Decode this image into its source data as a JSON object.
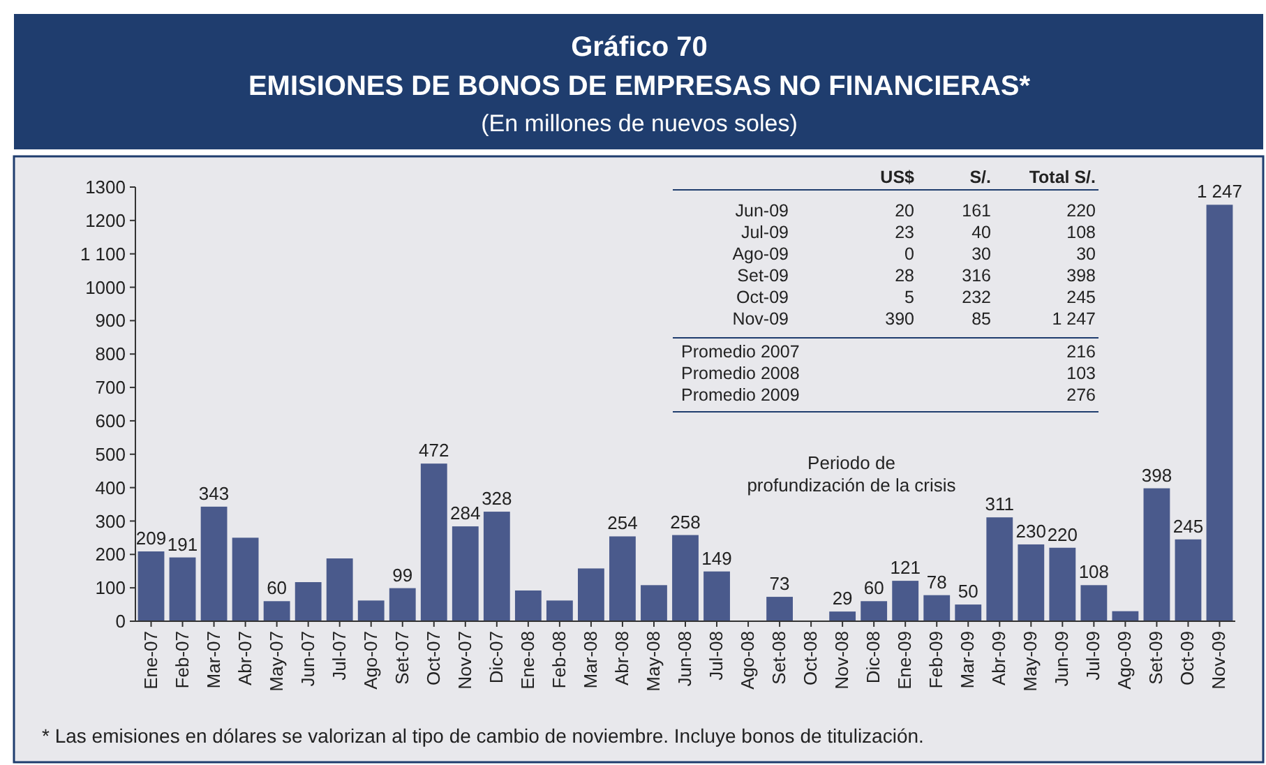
{
  "chart_data": {
    "type": "bar",
    "title": "EMISIONES DE BONOS DE EMPRESAS NO FINANCIERAS*",
    "subtitle": "(En millones de nuevos soles)",
    "categories": [
      "Ene-07",
      "Feb-07",
      "Mar-07",
      "Abr-07",
      "May-07",
      "Jun-07",
      "Jul-07",
      "Ago-07",
      "Set-07",
      "Oct-07",
      "Nov-07",
      "Dic-07",
      "Ene-08",
      "Feb-08",
      "Mar-08",
      "Abr-08",
      "May-08",
      "Jun-08",
      "Jul-08",
      "Ago-08",
      "Set-08",
      "Oct-08",
      "Nov-08",
      "Dic-08",
      "Ene-09",
      "Feb-09",
      "Mar-09",
      "Abr-09",
      "May-09",
      "Jun-09",
      "Jul-09",
      "Ago-09",
      "Set-09",
      "Oct-09",
      "Nov-09"
    ],
    "values": [
      209,
      191,
      343,
      250,
      60,
      117,
      188,
      62,
      99,
      472,
      284,
      328,
      92,
      62,
      158,
      254,
      108,
      258,
      149,
      0,
      73,
      0,
      29,
      60,
      121,
      78,
      50,
      311,
      230,
      220,
      108,
      30,
      398,
      245,
      1247
    ],
    "value_labels": [
      "209",
      "191",
      "343",
      null,
      "60",
      null,
      null,
      null,
      "99",
      "472",
      "284",
      "328",
      null,
      null,
      null,
      "254",
      null,
      "258",
      "149",
      null,
      "73",
      null,
      "29",
      "60",
      "121",
      "78",
      "50",
      "311",
      "230",
      "220",
      "108",
      null,
      "398",
      "245",
      "1 247"
    ],
    "color": "#4a5a8c",
    "ylim": [
      0,
      1300
    ],
    "yticks": [
      0,
      100,
      200,
      300,
      400,
      500,
      600,
      700,
      800,
      900,
      1000,
      {
        "value": 1100,
        "label": "1 100"
      },
      1200,
      1300
    ],
    "grid": false,
    "annotations": [
      "Gráfico 70",
      "Periodo de profundización de la crisis",
      "* Las emisiones en dólares se valorizan al tipo de cambio de noviembre. Incluye bonos de titulización.",
      "US$",
      "S/.",
      "Total S/.",
      "Jun-09",
      "20",
      "161",
      "220",
      "Jul-09",
      "23",
      "40",
      "108",
      "Ago-09",
      "0",
      "30",
      "30",
      "Set-09",
      "28",
      "316",
      "398",
      "Oct-09",
      "5",
      "232",
      "245",
      "Nov-09",
      "390",
      "85",
      "1 247",
      "Promedio 2007",
      "216",
      "Promedio 2008",
      "103",
      "Promedio 2009",
      "276"
    ]
  }
}
